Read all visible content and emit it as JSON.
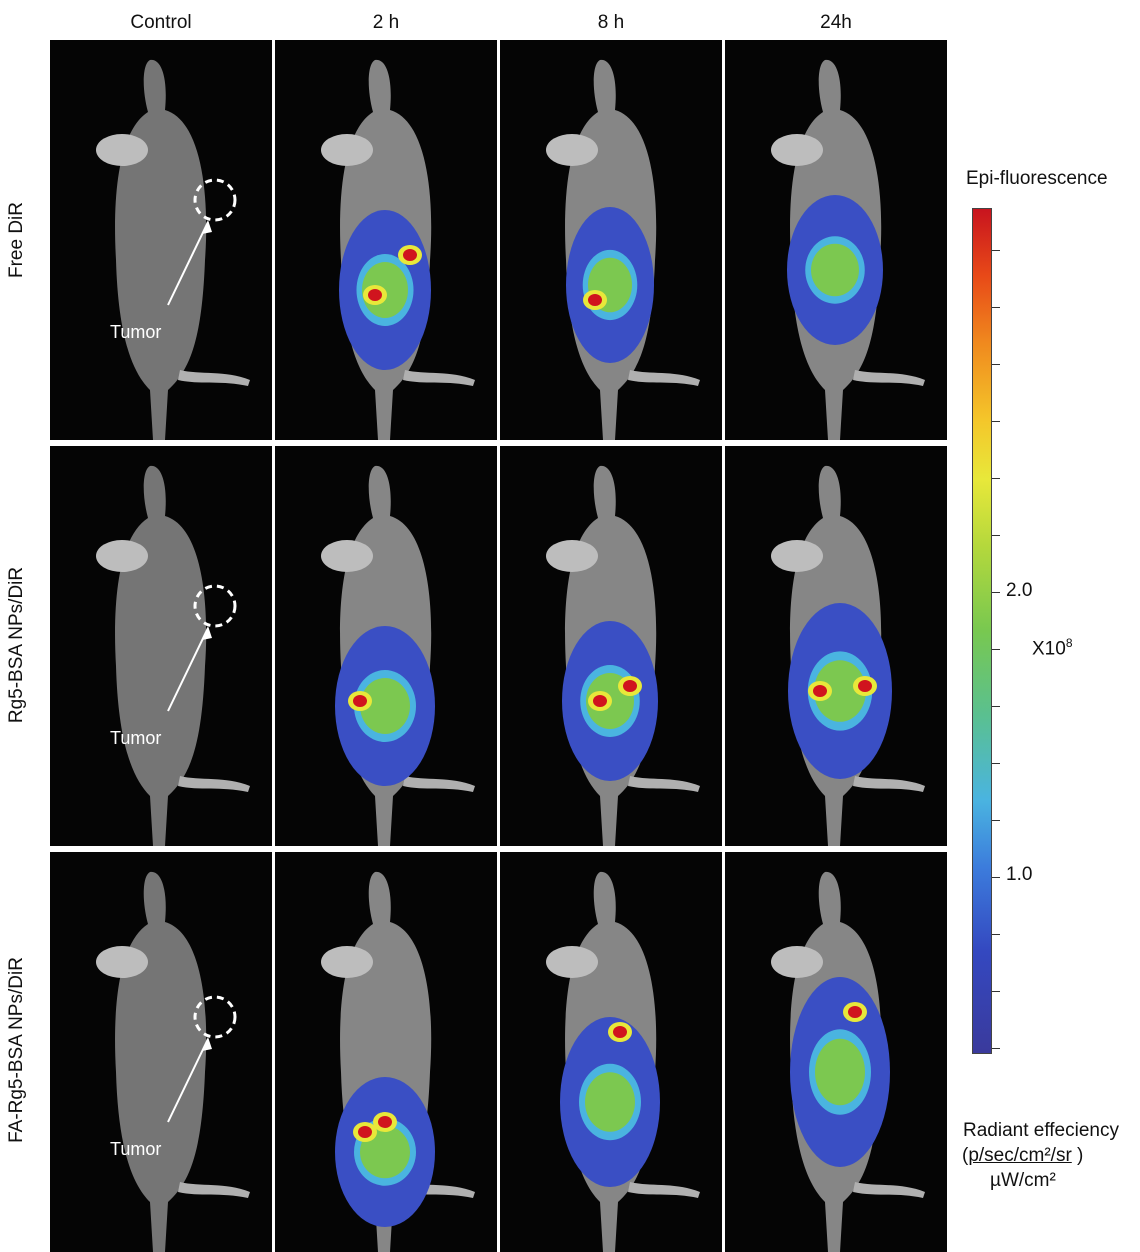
{
  "columns": [
    "Control",
    "2 h",
    "8 h",
    "24h"
  ],
  "rows": [
    "Free DiR",
    "Rg5-BSA NPs/DiR",
    "FA-Rg5-BSA NPs/DiR"
  ],
  "tumor_label": "Tumor",
  "colorbar": {
    "title": "Epi-fluorescence",
    "tick_labels": [
      "2.0",
      "1.0"
    ],
    "multiplier": "X10",
    "multiplier_exp": "8",
    "units_title": "Radiant effeciency",
    "units_numerator": "p/sec/cm²/sr",
    "units_denominator": "µW/cm²",
    "colors": [
      "#c8141e",
      "#f4c62a",
      "#78c850",
      "#4ab4e0",
      "#3a3a9c"
    ]
  }
}
